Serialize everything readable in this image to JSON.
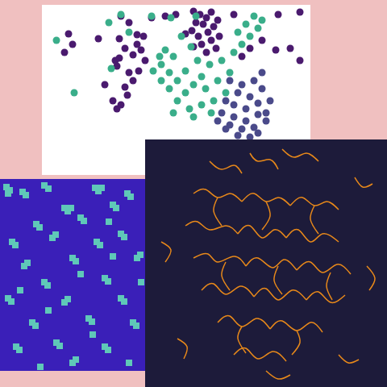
{
  "chart_data": [
    {
      "type": "scatter",
      "xlim": [
        52,
        385
      ],
      "ylim": [
        6,
        217
      ],
      "tick_labels": false,
      "series": [
        {
          "color": "#4a1a6e",
          "marker": "circle",
          "x": [
            240,
            248,
            262,
            256,
            270,
            243,
            252,
            265,
            238,
            258,
            246,
            272,
            262,
            250,
            240,
            268,
            256,
            230,
            150,
            160,
            178,
            170,
            155,
            165,
            148,
            180,
            175,
            145,
            160,
            172,
            130,
            155,
            165,
            140,
            158,
            145,
            150,
            143,
            85,
            90,
            80,
            170,
            148,
            122,
            205,
            218,
            345,
            372,
            342,
            372,
            360,
            300,
            310,
            325,
            290,
            188
          ],
          "y": [
            14,
            18,
            15,
            22,
            25,
            28,
            30,
            33,
            38,
            40,
            45,
            45,
            50,
            55,
            58,
            60,
            65,
            42,
            20,
            28,
            45,
            55,
            60,
            68,
            72,
            75,
            62,
            82,
            90,
            88,
            105,
            108,
            100,
            125,
            118,
            135,
            130,
            75,
            42,
            55,
            65,
            43,
            48,
            48,
            20,
            18,
            18,
            15,
            62,
            75,
            60,
            70,
            60,
            50,
            18,
            22
          ]
        },
        {
          "color": "#3aae8a",
          "marker": "circle",
          "x": [
            135,
            150,
            188,
            212,
            237,
            225,
            205,
            215,
            200,
            210,
            220,
            230,
            245,
            260,
            250,
            240,
            230,
            220,
            235,
            210,
            200,
            255,
            265,
            250,
            240,
            270,
            285,
            275,
            295,
            305,
            320,
            300,
            315,
            325,
            290,
            310,
            70,
            92,
            138,
            160,
            198,
            243,
            262,
            280,
            215,
            190
          ],
          "y": [
            28,
            18,
            20,
            22,
            58,
            45,
            62,
            70,
            80,
            90,
            100,
            88,
            75,
            80,
            95,
            105,
            115,
            125,
            135,
            110,
            100,
            110,
            125,
            130,
            145,
            100,
            90,
            75,
            40,
            30,
            35,
            55,
            20,
            25,
            65,
            45,
            50,
            115,
            85,
            40,
            70,
            20,
            140,
            115,
            140,
            88
          ]
        },
        {
          "color": "#4a4a8a",
          "marker": "circle",
          "x": [
            285,
            300,
            315,
            295,
            310,
            325,
            280,
            290,
            305,
            320,
            335,
            275,
            290,
            305,
            320,
            285,
            300,
            315,
            330,
            295,
            310,
            320,
            280,
            270,
            325,
            330
          ],
          "y": [
            100,
            105,
            100,
            115,
            120,
            110,
            125,
            130,
            135,
            128,
            125,
            140,
            145,
            150,
            142,
            155,
            160,
            158,
            150,
            168,
            170,
            165,
            160,
            150,
            90,
            140
          ]
        }
      ]
    },
    {
      "type": "scatter",
      "xlim": [
        0,
        180
      ],
      "ylim": [
        222,
        460
      ],
      "tick_labels": false,
      "series": [
        {
          "color": "#5fc8b8",
          "marker": "square",
          "x": [
            8,
            12,
            10,
            28,
            32,
            55,
            60,
            118,
            122,
            126,
            158,
            162,
            80,
            84,
            88,
            140,
            144,
            45,
            49,
            100,
            104,
            15,
            19,
            65,
            69,
            150,
            154,
            120,
            124,
            30,
            34,
            90,
            94,
            170,
            174,
            55,
            59,
            130,
            134,
            10,
            14,
            80,
            84,
            150,
            154,
            40,
            44,
            110,
            114,
            165,
            169,
            20,
            24,
            70,
            74,
            130,
            134,
            90,
            94,
            160,
            50,
            115,
            140,
            60,
            100,
            25,
            175,
            135
          ],
          "y": [
            232,
            236,
            240,
            238,
            242,
            230,
            234,
            233,
            237,
            233,
            240,
            244,
            258,
            262,
            258,
            254,
            258,
            278,
            282,
            270,
            274,
            300,
            304,
            295,
            291,
            290,
            294,
            300,
            304,
            330,
            326,
            320,
            324,
            320,
            316,
            350,
            354,
            345,
            349,
            370,
            374,
            375,
            371,
            370,
            374,
            400,
            404,
            395,
            399,
            400,
            404,
            430,
            434,
            425,
            429,
            430,
            434,
            450,
            446,
            450,
            455,
            415,
            318,
            385,
            340,
            360,
            350,
            275
          ]
        }
      ]
    },
    {
      "type": "line",
      "xlim": [
        180,
        480
      ],
      "ylim": [
        173,
        480
      ],
      "tick_labels": false,
      "series": [
        {
          "color": "#e8891a",
          "line_style": "solid",
          "x": [
            260,
            275,
            290,
            300
          ],
          "values": [
            200,
            210,
            205,
            215
          ]
        },
        {
          "color": "#e8891a",
          "line_style": "solid",
          "x": [
            310,
            320,
            335,
            345
          ],
          "values": [
            190,
            200,
            198,
            210
          ]
        },
        {
          "color": "#e8891a",
          "line_style": "solid",
          "x": [
            350,
            365,
            380,
            395
          ],
          "values": [
            185,
            195,
            190,
            200
          ]
        },
        {
          "color": "#e8891a",
          "line_style": "solid",
          "x": [
            240,
            255,
            270,
            285,
            300
          ],
          "values": [
            240,
            235,
            245,
            240,
            250
          ]
        },
        {
          "color": "#e8891a",
          "line_style": "solid",
          "x": [
            300,
            315,
            330,
            345,
            360
          ],
          "values": [
            250,
            240,
            250,
            245,
            255
          ]
        },
        {
          "color": "#e8891a",
          "line_style": "solid",
          "x": [
            360,
            375,
            390,
            405,
            420
          ],
          "values": [
            255,
            245,
            255,
            250,
            260
          ]
        },
        {
          "color": "#e8891a",
          "line_style": "solid",
          "x": [
            230,
            245,
            260,
            280,
            295
          ],
          "values": [
            280,
            275,
            285,
            280,
            290
          ]
        },
        {
          "color": "#e8891a",
          "line_style": "solid",
          "x": [
            295,
            310,
            325,
            340,
            355
          ],
          "values": [
            290,
            280,
            295,
            285,
            295
          ]
        },
        {
          "color": "#e8891a",
          "line_style": "solid",
          "x": [
            355,
            370,
            385,
            400,
            420
          ],
          "values": [
            295,
            285,
            300,
            290,
            300
          ]
        },
        {
          "color": "#e8891a",
          "line_style": "solid",
          "x": [
            240,
            258,
            270,
            290,
            305
          ],
          "values": [
            320,
            315,
            325,
            318,
            330
          ]
        },
        {
          "color": "#e8891a",
          "line_style": "solid",
          "x": [
            305,
            320,
            338,
            352,
            368
          ],
          "values": [
            330,
            320,
            332,
            322,
            335
          ]
        },
        {
          "color": "#e8891a",
          "line_style": "solid",
          "x": [
            368,
            385,
            400,
            418,
            435
          ],
          "values": [
            335,
            325,
            338,
            328,
            340
          ]
        },
        {
          "color": "#e8891a",
          "line_style": "solid",
          "x": [
            250,
            265,
            280,
            298,
            315
          ],
          "values": [
            360,
            352,
            365,
            355,
            368
          ]
        },
        {
          "color": "#e8891a",
          "line_style": "solid",
          "x": [
            315,
            330,
            345,
            362,
            380
          ],
          "values": [
            368,
            358,
            372,
            360,
            372
          ]
        },
        {
          "color": "#e8891a",
          "line_style": "solid",
          "x": [
            380,
            395,
            410,
            428
          ],
          "values": [
            372,
            362,
            375,
            366
          ]
        },
        {
          "color": "#e8891a",
          "line_style": "solid",
          "x": [
            270,
            285,
            300,
            318,
            335
          ],
          "values": [
            400,
            392,
            405,
            395,
            408
          ]
        },
        {
          "color": "#e8891a",
          "line_style": "solid",
          "x": [
            335,
            350,
            368,
            385,
            400
          ],
          "values": [
            408,
            398,
            410,
            400,
            412
          ]
        },
        {
          "color": "#e8891a",
          "line_style": "solid",
          "x": [
            290,
            305,
            320,
            338,
            355
          ],
          "values": [
            440,
            432,
            445,
            436,
            448
          ]
        },
        {
          "color": "#e8891a",
          "line_style": "solid",
          "x": [
            270,
            265,
            275
          ],
          "values": [
            245,
            262,
            280
          ]
        },
        {
          "color": "#e8891a",
          "line_style": "solid",
          "x": [
            330,
            335,
            325
          ],
          "values": [
            250,
            268,
            285
          ]
        },
        {
          "color": "#e8891a",
          "line_style": "solid",
          "x": [
            390,
            385,
            395
          ],
          "values": [
            255,
            272,
            290
          ]
        },
        {
          "color": "#e8891a",
          "line_style": "solid",
          "x": [
            280,
            275,
            285
          ],
          "values": [
            325,
            342,
            360
          ]
        },
        {
          "color": "#e8891a",
          "line_style": "solid",
          "x": [
            345,
            340,
            350
          ],
          "values": [
            330,
            348,
            365
          ]
        },
        {
          "color": "#e8891a",
          "line_style": "solid",
          "x": [
            410,
            405,
            412
          ],
          "values": [
            338,
            355,
            372
          ]
        },
        {
          "color": "#e8891a",
          "line_style": "solid",
          "x": [
            300,
            295,
            305
          ],
          "values": [
            405,
            420,
            438
          ]
        },
        {
          "color": "#e8891a",
          "line_style": "solid",
          "x": [
            368,
            372,
            362
          ],
          "values": [
            410,
            425,
            440
          ]
        },
        {
          "color": "#e8891a",
          "line_style": "solid",
          "x": [
            440,
            450,
            462
          ],
          "values": [
            220,
            232,
            228
          ]
        },
        {
          "color": "#e8891a",
          "line_style": "solid",
          "x": [
            200,
            212,
            205
          ],
          "values": [
            300,
            310,
            325
          ]
        },
        {
          "color": "#e8891a",
          "line_style": "solid",
          "x": [
            455,
            465,
            458
          ],
          "values": [
            330,
            345,
            360
          ]
        },
        {
          "color": "#e8891a",
          "line_style": "solid",
          "x": [
            220,
            232,
            228
          ],
          "values": [
            420,
            430,
            445
          ]
        },
        {
          "color": "#e8891a",
          "line_style": "solid",
          "x": [
            420,
            432,
            445
          ],
          "values": [
            440,
            450,
            446
          ]
        },
        {
          "color": "#e8891a",
          "line_style": "solid",
          "x": [
            330,
            345,
            360
          ],
          "values": [
            460,
            470,
            465
          ]
        }
      ]
    }
  ]
}
